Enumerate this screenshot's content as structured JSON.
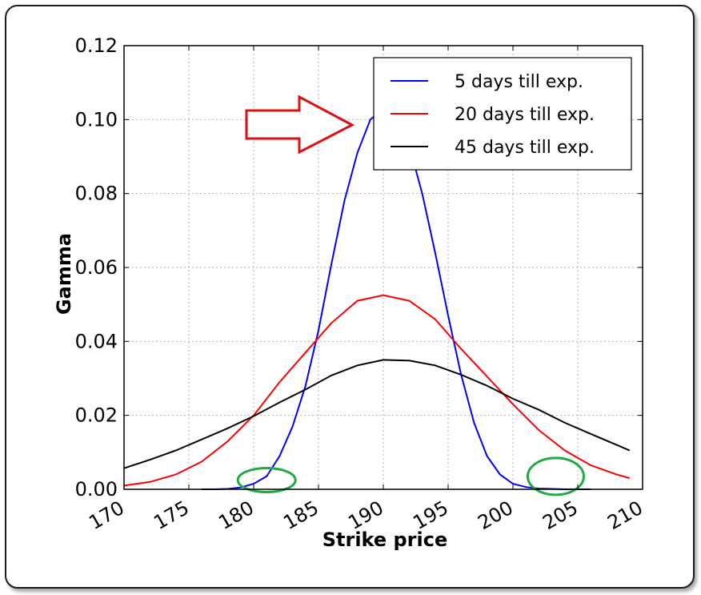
{
  "chart_data": {
    "type": "line",
    "title": "",
    "xlabel": "Strike price",
    "ylabel": "Gamma",
    "xlim": [
      170,
      210
    ],
    "ylim": [
      0,
      0.12
    ],
    "xticks": [
      "170",
      "175",
      "180",
      "185",
      "190",
      "195",
      "200",
      "205",
      "210"
    ],
    "yticks": [
      "0.00",
      "0.02",
      "0.04",
      "0.06",
      "0.08",
      "0.10",
      "0.12"
    ],
    "grid": true,
    "legend_position": "top-right",
    "series": [
      {
        "name": "5 days till exp.",
        "color": "#0000ff",
        "x": [
          176,
          177,
          178,
          179,
          180,
          181,
          182,
          183,
          184,
          185,
          186,
          187,
          188,
          189,
          190,
          191,
          192,
          193,
          194,
          195,
          196,
          197,
          198,
          199,
          200,
          201,
          202,
          203,
          204,
          205,
          206
        ],
        "y": [
          0.0,
          0.0,
          0.0001,
          0.0005,
          0.0015,
          0.0035,
          0.009,
          0.017,
          0.028,
          0.043,
          0.061,
          0.078,
          0.091,
          0.1,
          0.103,
          0.101,
          0.093,
          0.08,
          0.064,
          0.047,
          0.031,
          0.018,
          0.009,
          0.004,
          0.0015,
          0.0006,
          0.0002,
          0.0001,
          0.0,
          0.0,
          0.0
        ]
      },
      {
        "name": "20 days till exp.",
        "color": "#ff0000",
        "x": [
          170,
          172,
          174,
          176,
          178,
          180,
          182,
          184,
          186,
          188,
          190,
          192,
          194,
          196,
          198,
          200,
          202,
          204,
          206,
          208,
          209
        ],
        "y": [
          0.001,
          0.002,
          0.004,
          0.0075,
          0.013,
          0.02,
          0.029,
          0.037,
          0.045,
          0.051,
          0.0525,
          0.051,
          0.046,
          0.038,
          0.0305,
          0.023,
          0.016,
          0.0105,
          0.0065,
          0.004,
          0.003
        ]
      },
      {
        "name": "45 days till exp.",
        "color": "#000000",
        "x": [
          170,
          172,
          174,
          176,
          178,
          180,
          182,
          184,
          186,
          188,
          190,
          192,
          194,
          196,
          198,
          200,
          202,
          204,
          206,
          208,
          209
        ],
        "y": [
          0.0057,
          0.008,
          0.0105,
          0.0135,
          0.0165,
          0.0198,
          0.0235,
          0.027,
          0.0308,
          0.0335,
          0.035,
          0.0348,
          0.0335,
          0.031,
          0.028,
          0.0245,
          0.0215,
          0.018,
          0.015,
          0.012,
          0.0105
        ]
      }
    ],
    "annotations": [
      {
        "kind": "arrow",
        "color": "#dd1111"
      },
      {
        "kind": "ellipse",
        "color": "#22aa44",
        "x": 181,
        "y": 0.0025
      },
      {
        "kind": "ellipse",
        "color": "#22aa44",
        "x": 203.3,
        "y": 0.0035
      }
    ]
  }
}
